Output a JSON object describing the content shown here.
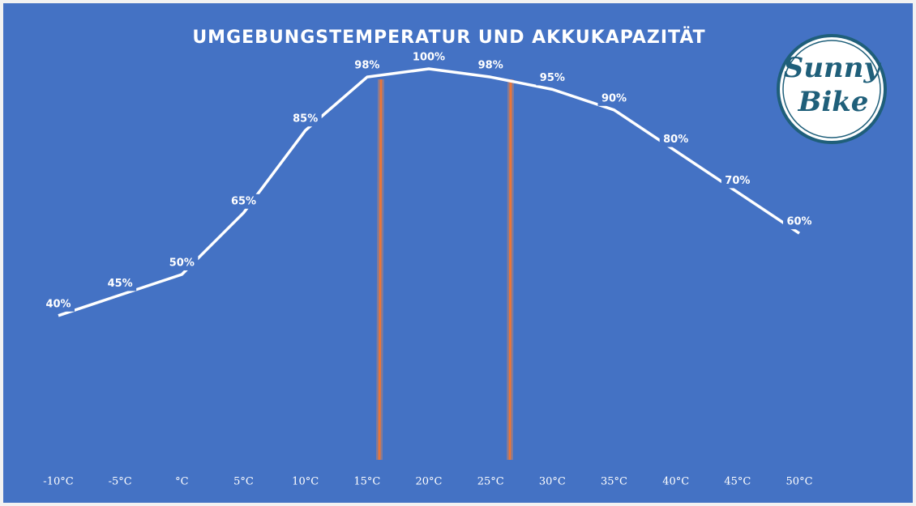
{
  "chart_data": {
    "type": "line",
    "title": "UMGEBUNGSTEMPERATUR UND AKKUKAPAZITÄT",
    "categories": [
      "-10°C",
      "-5°C",
      "°C",
      "5°C",
      "10°C",
      "15°C",
      "20°C",
      "25°C",
      "30°C",
      "35°C",
      "40°C",
      "45°C",
      "50°C"
    ],
    "values": [
      40,
      45,
      50,
      65,
      85,
      98,
      100,
      98,
      95,
      90,
      80,
      70,
      60
    ],
    "value_labels": [
      "40%",
      "45%",
      "50%",
      "65%",
      "85%",
      "98%",
      "100%",
      "98%",
      "95%",
      "90%",
      "80%",
      "70%",
      "60%"
    ],
    "color": "#ffffff"
  },
  "logo": {
    "line1": "Sunny",
    "line2": "Bike"
  }
}
